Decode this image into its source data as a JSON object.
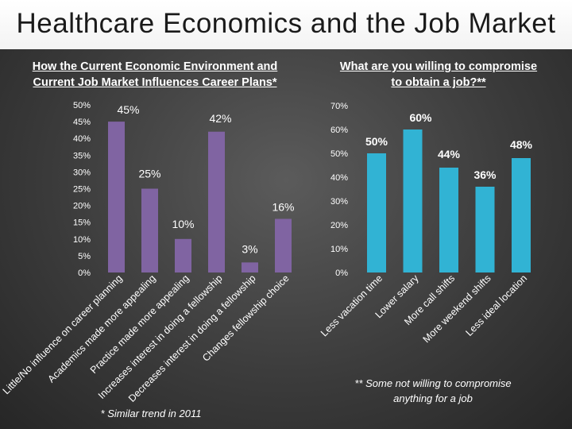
{
  "page": {
    "title": "Healthcare Economics and the Job Market"
  },
  "left_panel": {
    "subtitle_line1": "How the Current Economic Environment and",
    "subtitle_line2": "Current Job Market Influences Career Plans*",
    "footnote": "* Similar trend in 2011"
  },
  "right_panel": {
    "subtitle_line1": "What are you willing to compromise",
    "subtitle_line2": "to obtain a job?**",
    "footnote_line1": "** Some not willing to compromise",
    "footnote_line2": "anything for a job"
  },
  "chart_data": [
    {
      "type": "bar",
      "title": "How the Current Economic Environment and Current Job Market Influences Career Plans*",
      "categories": [
        "Little/No influence on career planning",
        "Academics made more appealing",
        "Practice made more appealing",
        "Increases interest in doing a fellowship",
        "Decreases interest in doing a fellowship",
        "Changes fellowship choice"
      ],
      "values": [
        45,
        25,
        10,
        42,
        3,
        16
      ],
      "data_labels": [
        "45%",
        "25%",
        "10%",
        "42%",
        "3%",
        "16%"
      ],
      "ylim": [
        0,
        50
      ],
      "yticks": [
        "0%",
        "5%",
        "10%",
        "15%",
        "20%",
        "25%",
        "30%",
        "35%",
        "40%",
        "45%",
        "50%"
      ],
      "xlabel": "",
      "ylabel": "",
      "bar_color": "#8064a2"
    },
    {
      "type": "bar",
      "title": "What are you willing to compromise to obtain a job?**",
      "categories": [
        "Less vacation time",
        "Lower salary",
        "More call shifts",
        "More weekend shifts",
        "Less ideal location"
      ],
      "values": [
        50,
        60,
        44,
        36,
        48
      ],
      "data_labels": [
        "50%",
        "60%",
        "44%",
        "36%",
        "48%"
      ],
      "ylim": [
        0,
        70
      ],
      "yticks": [
        "0%",
        "10%",
        "20%",
        "30%",
        "40%",
        "50%",
        "60%",
        "70%"
      ],
      "xlabel": "",
      "ylabel": "",
      "bar_color": "#31b3d4"
    }
  ]
}
